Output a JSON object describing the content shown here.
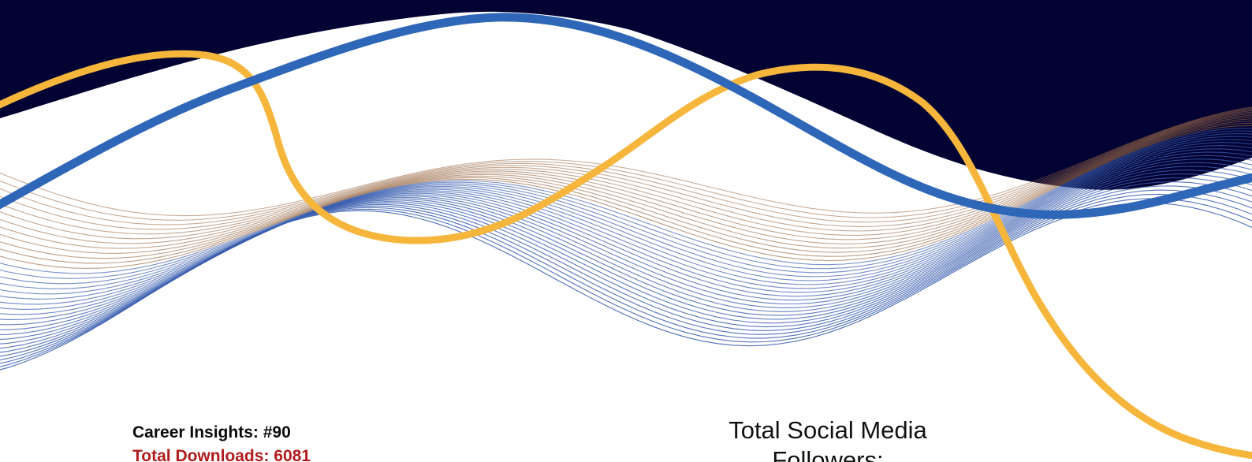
{
  "colors": {
    "navy_background": "#020233",
    "ribbon_orange": "#f6b63c",
    "ribbon_blue": "#2f67b8",
    "mesh_blue": "#3b5fb0",
    "mesh_bronze": "#9a6a45",
    "downloads_red": "#b01c1c"
  },
  "stats": {
    "career_insights": "Career Insights: #90",
    "total_downloads": "Total Downloads: 6081"
  },
  "social": {
    "line1": "Total Social Media",
    "line2": "Followers:"
  }
}
